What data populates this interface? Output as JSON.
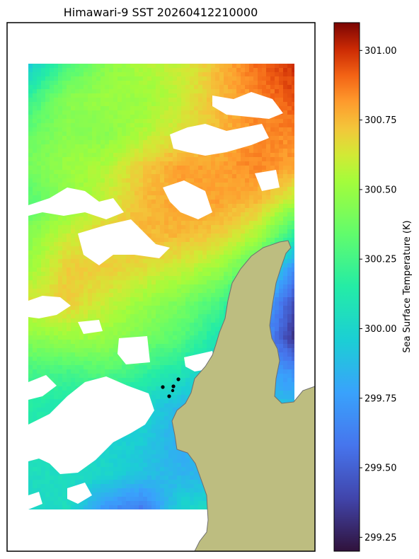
{
  "chart_data": {
    "type": "heatmap",
    "title": "Himawari-9 SST 20260412210000",
    "colorbar": {
      "label": "Sea Surface Temperature (K)",
      "range": [
        299.2,
        301.1
      ],
      "ticks": [
        "299.25",
        "299.50",
        "299.75",
        "300.00",
        "300.25",
        "300.50",
        "300.75",
        "301.00"
      ],
      "tick_values": [
        299.25,
        299.5,
        299.75,
        300.0,
        300.25,
        300.5,
        300.75,
        301.0
      ],
      "colormap": "turbo"
    },
    "grid": false,
    "field_rows_top_to_bottom": [
      [
        299.95,
        300.25,
        300.45,
        300.55,
        300.6,
        300.75,
        300.9,
        301.0
      ],
      [
        300.2,
        300.45,
        300.5,
        300.5,
        300.6,
        300.75,
        300.85,
        300.95
      ],
      [
        300.35,
        300.45,
        300.45,
        300.55,
        300.65,
        300.75,
        300.85,
        300.85
      ],
      [
        300.4,
        300.5,
        300.55,
        300.7,
        300.8,
        300.8,
        300.85,
        300.8
      ],
      [
        300.3,
        300.45,
        300.6,
        300.75,
        300.8,
        300.8,
        300.75,
        300.55
      ],
      [
        300.45,
        300.6,
        300.7,
        300.75,
        300.75,
        300.7,
        300.55,
        300.15
      ],
      [
        300.5,
        300.7,
        300.7,
        300.65,
        300.6,
        300.5,
        300.25,
        299.65
      ],
      [
        300.65,
        300.7,
        300.6,
        300.5,
        300.4,
        300.25,
        299.9,
        299.4
      ],
      [
        300.45,
        300.5,
        300.5,
        300.4,
        300.3,
        300.1,
        299.8,
        299.3
      ],
      [
        300.25,
        300.25,
        300.3,
        300.2,
        300.1,
        299.9,
        299.8,
        299.7
      ],
      [
        300.15,
        300.1,
        300.1,
        300.0,
        299.85,
        299.85,
        299.9,
        299.9
      ],
      [
        300.1,
        300.05,
        300.0,
        299.95,
        299.8,
        299.85,
        299.9,
        299.9
      ],
      [
        300.05,
        300.05,
        300.0,
        299.9,
        299.85,
        299.85,
        299.9,
        299.9
      ],
      [
        300.0,
        300.05,
        299.7,
        299.6,
        300.0,
        300.05,
        300.0,
        300.0
      ]
    ],
    "land_color": "#bdbd80",
    "masked_color": "#ffffff"
  }
}
